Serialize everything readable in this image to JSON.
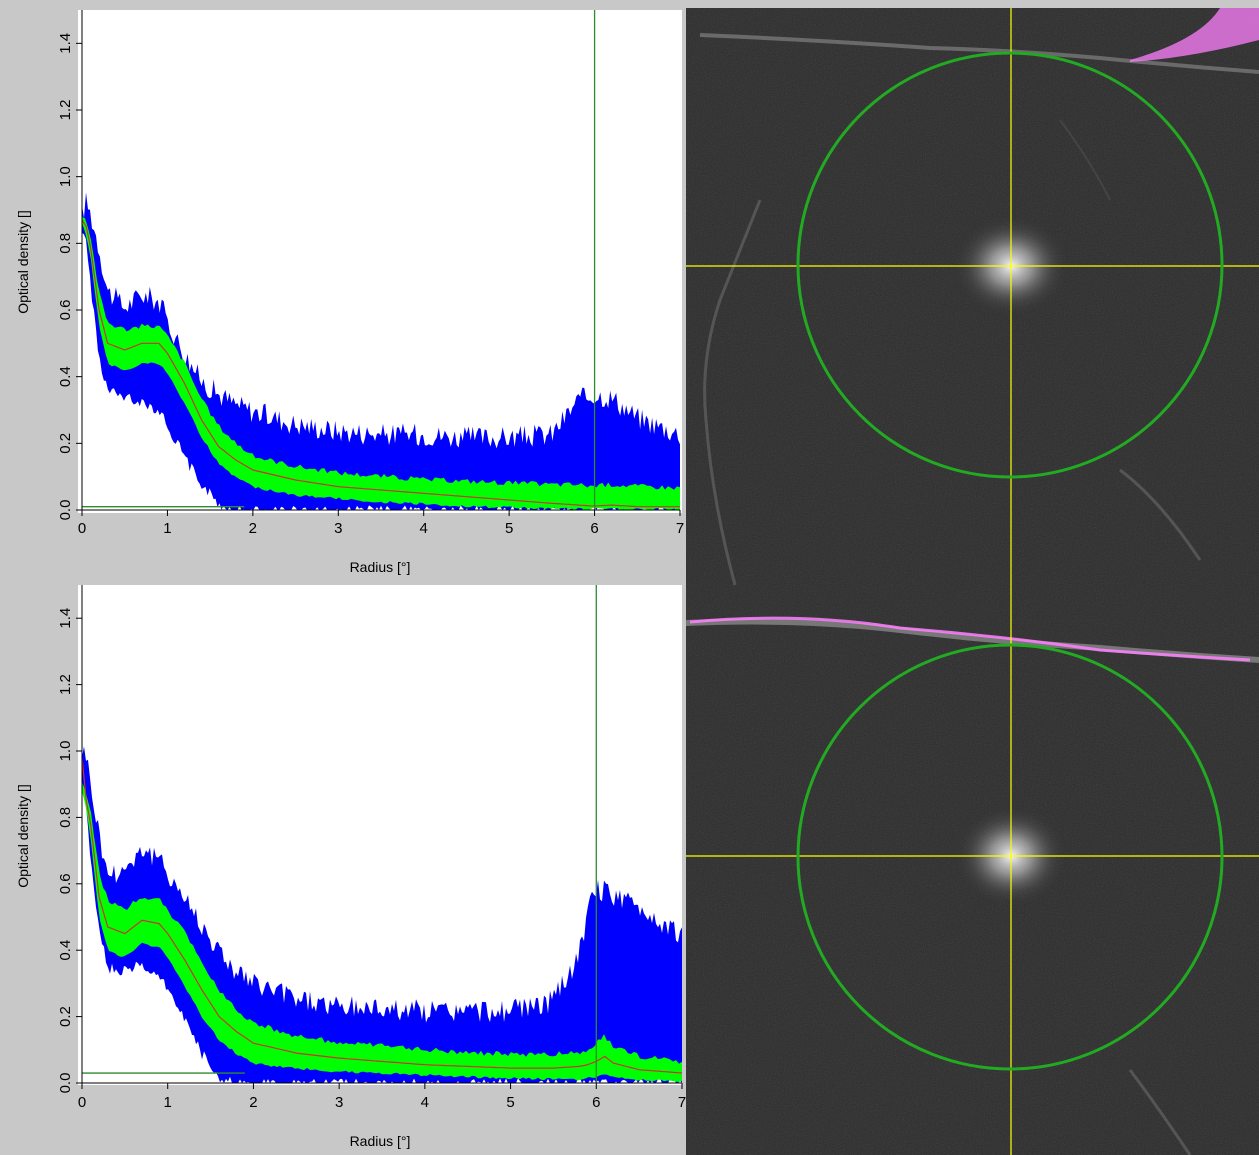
{
  "chart_data": [
    {
      "type": "area",
      "xlabel": "Radius [°]",
      "ylabel": "Optical density []",
      "xlim": [
        0,
        7
      ],
      "ylim": [
        0,
        1.5
      ],
      "xticks": [
        "0",
        "1",
        "2",
        "3",
        "4",
        "5",
        "6",
        "7"
      ],
      "yticks": [
        "0.0",
        "0.2",
        "0.4",
        "0.6",
        "0.8",
        "1.0",
        "1.2",
        "1.4"
      ],
      "grid": false,
      "reference_lines": {
        "vertical_x": 6.0,
        "horizontal_y": 0.01
      },
      "series": [
        {
          "role": "outer-band",
          "x": [
            0,
            0.05,
            0.1,
            0.2,
            0.3,
            0.5,
            0.7,
            0.9,
            1.0,
            1.2,
            1.4,
            1.6,
            1.8,
            2.0,
            2.5,
            3.0,
            3.5,
            4.0,
            4.5,
            5.0,
            5.5,
            5.8,
            6.0,
            6.2,
            6.5,
            7.0
          ],
          "upper": [
            0.88,
            0.92,
            0.88,
            0.78,
            0.65,
            0.6,
            0.64,
            0.62,
            0.56,
            0.46,
            0.38,
            0.34,
            0.31,
            0.29,
            0.25,
            0.23,
            0.22,
            0.22,
            0.21,
            0.21,
            0.22,
            0.32,
            0.34,
            0.33,
            0.27,
            0.22
          ],
          "lower": [
            0.85,
            0.8,
            0.68,
            0.46,
            0.36,
            0.34,
            0.33,
            0.3,
            0.26,
            0.16,
            0.08,
            0.02,
            0.0,
            0.0,
            0.0,
            0.0,
            0.0,
            0.0,
            0.0,
            0.0,
            0.0,
            0.0,
            0.0,
            0.0,
            0.0,
            0.0
          ],
          "color": "#0000ff"
        },
        {
          "role": "inner-band",
          "x": [
            0,
            0.05,
            0.1,
            0.2,
            0.3,
            0.5,
            0.7,
            0.9,
            1.0,
            1.2,
            1.4,
            1.6,
            1.8,
            2.0,
            2.5,
            3.0,
            3.5,
            4.0,
            4.5,
            5.0,
            5.5,
            5.8,
            6.0,
            6.2,
            6.5,
            7.0
          ],
          "upper": [
            0.88,
            0.87,
            0.82,
            0.65,
            0.56,
            0.54,
            0.55,
            0.55,
            0.52,
            0.44,
            0.33,
            0.25,
            0.2,
            0.16,
            0.13,
            0.11,
            0.1,
            0.09,
            0.085,
            0.08,
            0.075,
            0.075,
            0.07,
            0.075,
            0.07,
            0.065
          ],
          "lower": [
            0.86,
            0.83,
            0.76,
            0.55,
            0.44,
            0.42,
            0.44,
            0.44,
            0.41,
            0.32,
            0.22,
            0.14,
            0.1,
            0.07,
            0.045,
            0.035,
            0.025,
            0.02,
            0.012,
            0.008,
            0.005,
            0.004,
            0.004,
            0.003,
            0.003,
            0.002
          ],
          "color": "#00ff00"
        },
        {
          "role": "mean",
          "x": [
            0,
            0.05,
            0.1,
            0.2,
            0.3,
            0.5,
            0.7,
            0.9,
            1.0,
            1.2,
            1.4,
            1.6,
            1.8,
            2.0,
            2.5,
            3.0,
            3.5,
            4.0,
            4.5,
            5.0,
            5.5,
            5.8,
            6.0,
            6.2,
            6.5,
            7.0
          ],
          "values": [
            0.87,
            0.85,
            0.79,
            0.6,
            0.5,
            0.48,
            0.5,
            0.5,
            0.47,
            0.38,
            0.27,
            0.19,
            0.15,
            0.12,
            0.09,
            0.07,
            0.06,
            0.05,
            0.04,
            0.03,
            0.02,
            0.015,
            0.012,
            0.015,
            0.01,
            0.01
          ],
          "color": "#cc3333"
        }
      ]
    },
    {
      "type": "area",
      "xlabel": "Radius [°]",
      "ylabel": "Optical density []",
      "xlim": [
        0,
        7
      ],
      "ylim": [
        0,
        1.5
      ],
      "xticks": [
        "0",
        "1",
        "2",
        "3",
        "4",
        "5",
        "6",
        "7"
      ],
      "yticks": [
        "0.0",
        "0.2",
        "0.4",
        "0.6",
        "0.8",
        "1.0",
        "1.2",
        "1.4"
      ],
      "grid": false,
      "reference_lines": {
        "vertical_x": 6.0,
        "horizontal_y": 0.03
      },
      "series": [
        {
          "role": "outer-band",
          "x": [
            0,
            0.05,
            0.1,
            0.2,
            0.3,
            0.5,
            0.7,
            0.9,
            1.0,
            1.2,
            1.4,
            1.6,
            1.8,
            2.0,
            2.5,
            3.0,
            3.5,
            4.0,
            4.5,
            5.0,
            5.5,
            5.8,
            5.9,
            6.0,
            6.2,
            6.5,
            7.0
          ],
          "upper": [
            1.0,
            0.98,
            0.9,
            0.74,
            0.62,
            0.64,
            0.7,
            0.66,
            0.63,
            0.55,
            0.47,
            0.39,
            0.33,
            0.29,
            0.25,
            0.22,
            0.22,
            0.21,
            0.21,
            0.21,
            0.24,
            0.38,
            0.5,
            0.58,
            0.56,
            0.52,
            0.44
          ],
          "lower": [
            0.92,
            0.82,
            0.68,
            0.46,
            0.35,
            0.34,
            0.36,
            0.32,
            0.29,
            0.2,
            0.09,
            0.02,
            0.0,
            0.0,
            0.0,
            0.0,
            0.0,
            0.0,
            0.0,
            0.0,
            0.0,
            0.0,
            0.0,
            0.0,
            0.0,
            0.0,
            0.0
          ],
          "color": "#0000ff"
        },
        {
          "role": "inner-band",
          "x": [
            0,
            0.05,
            0.1,
            0.2,
            0.3,
            0.5,
            0.7,
            0.9,
            1.0,
            1.2,
            1.4,
            1.6,
            1.8,
            2.0,
            2.5,
            3.0,
            3.5,
            4.0,
            4.5,
            5.0,
            5.5,
            5.8,
            5.9,
            6.0,
            6.1,
            6.2,
            6.5,
            7.0
          ],
          "upper": [
            0.9,
            0.87,
            0.82,
            0.63,
            0.55,
            0.52,
            0.56,
            0.55,
            0.52,
            0.45,
            0.36,
            0.28,
            0.22,
            0.18,
            0.14,
            0.12,
            0.11,
            0.1,
            0.09,
            0.085,
            0.085,
            0.09,
            0.1,
            0.12,
            0.14,
            0.11,
            0.08,
            0.06
          ],
          "lower": [
            0.88,
            0.83,
            0.74,
            0.5,
            0.4,
            0.38,
            0.42,
            0.41,
            0.38,
            0.29,
            0.2,
            0.13,
            0.09,
            0.06,
            0.045,
            0.035,
            0.03,
            0.025,
            0.02,
            0.015,
            0.012,
            0.012,
            0.015,
            0.02,
            0.03,
            0.02,
            0.01,
            0.008
          ],
          "color": "#00ff00"
        },
        {
          "role": "mean",
          "x": [
            0,
            0.05,
            0.1,
            0.2,
            0.3,
            0.5,
            0.7,
            0.9,
            1.0,
            1.2,
            1.4,
            1.6,
            1.8,
            2.0,
            2.5,
            3.0,
            3.5,
            4.0,
            4.5,
            5.0,
            5.5,
            5.8,
            5.9,
            6.0,
            6.1,
            6.2,
            6.5,
            7.0
          ],
          "values": [
            0.98,
            0.85,
            0.78,
            0.56,
            0.47,
            0.45,
            0.49,
            0.48,
            0.45,
            0.37,
            0.28,
            0.2,
            0.155,
            0.12,
            0.09,
            0.075,
            0.065,
            0.055,
            0.05,
            0.045,
            0.045,
            0.05,
            0.055,
            0.065,
            0.08,
            0.06,
            0.04,
            0.03
          ],
          "color": "#cc3333"
        }
      ]
    }
  ],
  "images": [
    {
      "kind": "fundus-autofluorescence",
      "crosshair_color": "#ffff00",
      "circle_color": "#22aa22",
      "artifact_color": "#ff80ff"
    },
    {
      "kind": "fundus-autofluorescence",
      "crosshair_color": "#ffff00",
      "circle_color": "#22aa22",
      "artifact_color": "#ff80ff"
    }
  ]
}
